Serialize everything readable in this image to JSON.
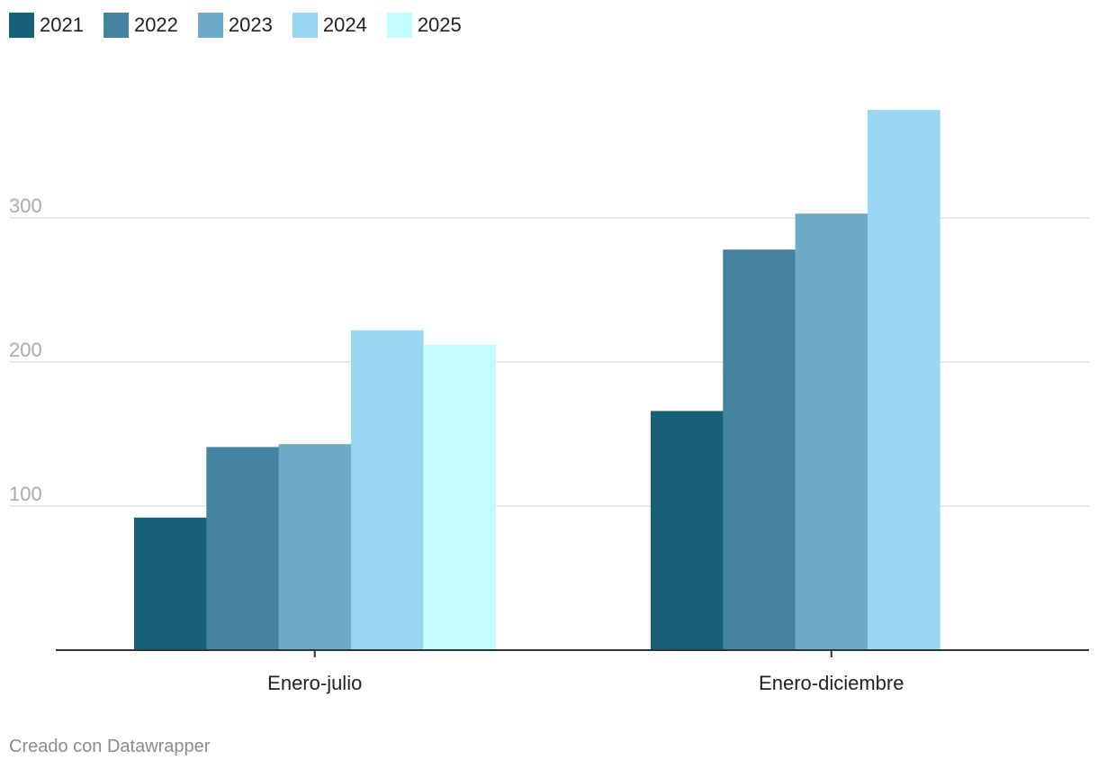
{
  "chart_data": {
    "type": "bar",
    "categories": [
      "Enero-julio",
      "Enero-diciembre"
    ],
    "series": [
      {
        "name": "2021",
        "color": "#17607a",
        "values": [
          92,
          166
        ]
      },
      {
        "name": "2022",
        "color": "#4584a0",
        "values": [
          141,
          278
        ]
      },
      {
        "name": "2023",
        "color": "#6eabc8",
        "values": [
          143,
          303
        ]
      },
      {
        "name": "2024",
        "color": "#98d6f2",
        "values": [
          222,
          375
        ]
      },
      {
        "name": "2025",
        "color": "#c3fcfd",
        "values": [
          212,
          null
        ]
      }
    ],
    "y_ticks": [
      "100",
      "200",
      "300"
    ],
    "ylim": [
      0,
      375
    ],
    "grid": true,
    "legend_position": "top-left"
  },
  "credit": "Creado con Datawrapper"
}
